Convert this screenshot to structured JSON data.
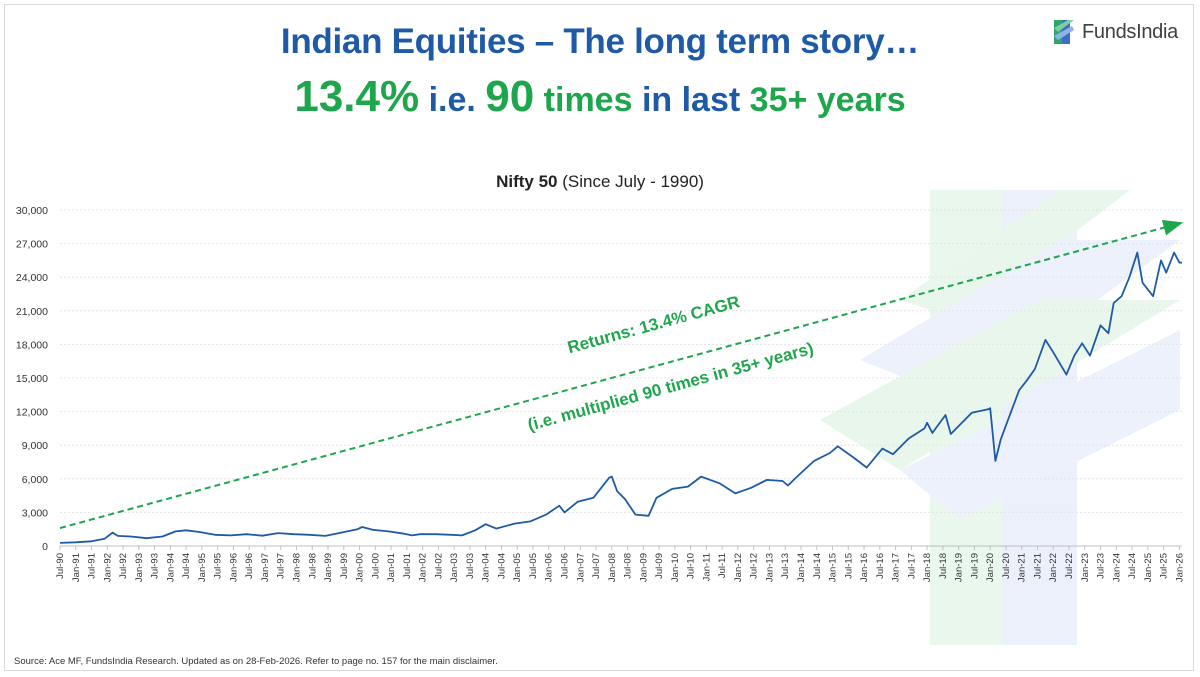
{
  "header": {
    "title_line1": "Indian Equities – The long term story…",
    "title_line2": {
      "pct": "13.4%",
      "ie": "i.e.",
      "num": "90",
      "times": "times",
      "in_last": "in last",
      "years": "35+ years"
    }
  },
  "logo": {
    "text": "FundsIndia",
    "icon": "fundsindia-logo-icon"
  },
  "footer": {
    "source": "Source: Ace MF, FundsIndia Research. Updated as on 28-Feb-2026. Refer to page no. 157 for the main disclaimer."
  },
  "colors": {
    "title": "#1f5aa6",
    "accent_green": "#1ea64c",
    "series_line": "#1f5aa6",
    "trend_line": "#1ea64c"
  },
  "chart_data": {
    "type": "line",
    "title_bold": "Nifty 50",
    "title_rest": " (Since July - 1990)",
    "xlabel": "",
    "ylabel": "",
    "ylim": [
      0,
      30000
    ],
    "yticks": [
      0,
      3000,
      6000,
      9000,
      12000,
      15000,
      18000,
      21000,
      24000,
      27000,
      30000
    ],
    "ytick_labels": [
      "0",
      "3,000",
      "6,000",
      "9,000",
      "12,000",
      "15,000",
      "18,000",
      "21,000",
      "24,000",
      "27,000",
      "30,000"
    ],
    "x_range": [
      "1990-07",
      "2026-02"
    ],
    "xtick_labels": [
      "Jul-90",
      "Jan-91",
      "Jul-91",
      "Jan-92",
      "Jul-92",
      "Jan-93",
      "Jul-93",
      "Jan-94",
      "Jul-94",
      "Jan-95",
      "Jul-95",
      "Jan-96",
      "Jul-96",
      "Jan-97",
      "Jul-97",
      "Jan-98",
      "Jul-98",
      "Jan-99",
      "Jul-99",
      "Jan-00",
      "Jul-00",
      "Jan-01",
      "Jul-01",
      "Jan-02",
      "Jul-02",
      "Jan-03",
      "Jul-03",
      "Jan-04",
      "Jul-04",
      "Jan-05",
      "Jul-05",
      "Jan-06",
      "Jul-06",
      "Jan-07",
      "Jul-07",
      "Jan-08",
      "Jul-08",
      "Jan-09",
      "Jul-09",
      "Jan-10",
      "Jul-10",
      "Jan-11",
      "Jul-11",
      "Jan-12",
      "Jul-12",
      "Jan-13",
      "Jul-13",
      "Jan-14",
      "Jul-14",
      "Jan-15",
      "Jul-15",
      "Jan-16",
      "Jul-16",
      "Jan-17",
      "Jul-17",
      "Jan-18",
      "Jul-18",
      "Jan-19",
      "Jul-19",
      "Jan-20",
      "Jul-20",
      "Jan-21",
      "Jul-21",
      "Jan-22",
      "Jul-22",
      "Jan-23",
      "Jul-23",
      "Jan-24",
      "Jul-24",
      "Jan-25",
      "Jul-25",
      "Jan-26"
    ],
    "grid": true,
    "series": [
      {
        "points": [
          [
            "1990-07",
            280
          ],
          [
            "1991-01",
            330
          ],
          [
            "1991-07",
            420
          ],
          [
            "1991-12",
            650
          ],
          [
            "1992-03",
            1200
          ],
          [
            "1992-05",
            900
          ],
          [
            "1992-10",
            850
          ],
          [
            "1993-04",
            700
          ],
          [
            "1993-10",
            850
          ],
          [
            "1994-03",
            1300
          ],
          [
            "1994-07",
            1400
          ],
          [
            "1994-12",
            1250
          ],
          [
            "1995-06",
            1000
          ],
          [
            "1995-12",
            950
          ],
          [
            "1996-06",
            1050
          ],
          [
            "1996-12",
            920
          ],
          [
            "1997-06",
            1150
          ],
          [
            "1997-12",
            1050
          ],
          [
            "1998-06",
            1000
          ],
          [
            "1998-12",
            900
          ],
          [
            "1999-06",
            1200
          ],
          [
            "1999-12",
            1480
          ],
          [
            "2000-02",
            1700
          ],
          [
            "2000-06",
            1450
          ],
          [
            "2000-12",
            1300
          ],
          [
            "2001-06",
            1100
          ],
          [
            "2001-09",
            950
          ],
          [
            "2001-12",
            1050
          ],
          [
            "2002-06",
            1050
          ],
          [
            "2002-12",
            1000
          ],
          [
            "2003-04",
            950
          ],
          [
            "2003-09",
            1400
          ],
          [
            "2004-01",
            1950
          ],
          [
            "2004-05",
            1550
          ],
          [
            "2004-12",
            2000
          ],
          [
            "2005-06",
            2200
          ],
          [
            "2005-12",
            2800
          ],
          [
            "2006-05",
            3600
          ],
          [
            "2006-07",
            3000
          ],
          [
            "2006-12",
            3950
          ],
          [
            "2007-06",
            4300
          ],
          [
            "2007-12",
            6100
          ],
          [
            "2008-01",
            6200
          ],
          [
            "2008-03",
            4900
          ],
          [
            "2008-06",
            4200
          ],
          [
            "2008-10",
            2800
          ],
          [
            "2009-03",
            2700
          ],
          [
            "2009-06",
            4300
          ],
          [
            "2009-12",
            5100
          ],
          [
            "2010-06",
            5300
          ],
          [
            "2010-11",
            6200
          ],
          [
            "2011-06",
            5600
          ],
          [
            "2011-12",
            4700
          ],
          [
            "2012-06",
            5200
          ],
          [
            "2012-12",
            5900
          ],
          [
            "2013-06",
            5800
          ],
          [
            "2013-08",
            5400
          ],
          [
            "2013-12",
            6300
          ],
          [
            "2014-06",
            7600
          ],
          [
            "2014-12",
            8300
          ],
          [
            "2015-03",
            8900
          ],
          [
            "2015-09",
            7900
          ],
          [
            "2016-02",
            7000
          ],
          [
            "2016-08",
            8700
          ],
          [
            "2016-12",
            8200
          ],
          [
            "2017-06",
            9600
          ],
          [
            "2017-12",
            10500
          ],
          [
            "2018-01",
            11000
          ],
          [
            "2018-03",
            10100
          ],
          [
            "2018-08",
            11700
          ],
          [
            "2018-10",
            10000
          ],
          [
            "2019-06",
            11900
          ],
          [
            "2019-12",
            12200
          ],
          [
            "2020-01",
            12300
          ],
          [
            "2020-03",
            7600
          ],
          [
            "2020-05",
            9500
          ],
          [
            "2020-08",
            11400
          ],
          [
            "2020-12",
            13900
          ],
          [
            "2021-03",
            14800
          ],
          [
            "2021-06",
            15800
          ],
          [
            "2021-10",
            18400
          ],
          [
            "2022-01",
            17300
          ],
          [
            "2022-06",
            15300
          ],
          [
            "2022-09",
            17000
          ],
          [
            "2022-12",
            18100
          ],
          [
            "2023-03",
            17000
          ],
          [
            "2023-07",
            19700
          ],
          [
            "2023-10",
            19000
          ],
          [
            "2023-12",
            21700
          ],
          [
            "2024-03",
            22300
          ],
          [
            "2024-06",
            24000
          ],
          [
            "2024-09",
            26200
          ],
          [
            "2024-11",
            23500
          ],
          [
            "2025-03",
            22300
          ],
          [
            "2025-06",
            25500
          ],
          [
            "2025-08",
            24400
          ],
          [
            "2025-11",
            26200
          ],
          [
            "2026-01",
            25300
          ],
          [
            "2026-02",
            25300
          ]
        ]
      }
    ],
    "trend_line": {
      "start": [
        "1990-07",
        1600
      ],
      "end": [
        "2026-01",
        28800
      ],
      "style": "dashed-arrow"
    },
    "annotations": [
      "Returns: 13.4% CAGR",
      "(i.e. multiplied 90 times in 35+ years)"
    ]
  }
}
